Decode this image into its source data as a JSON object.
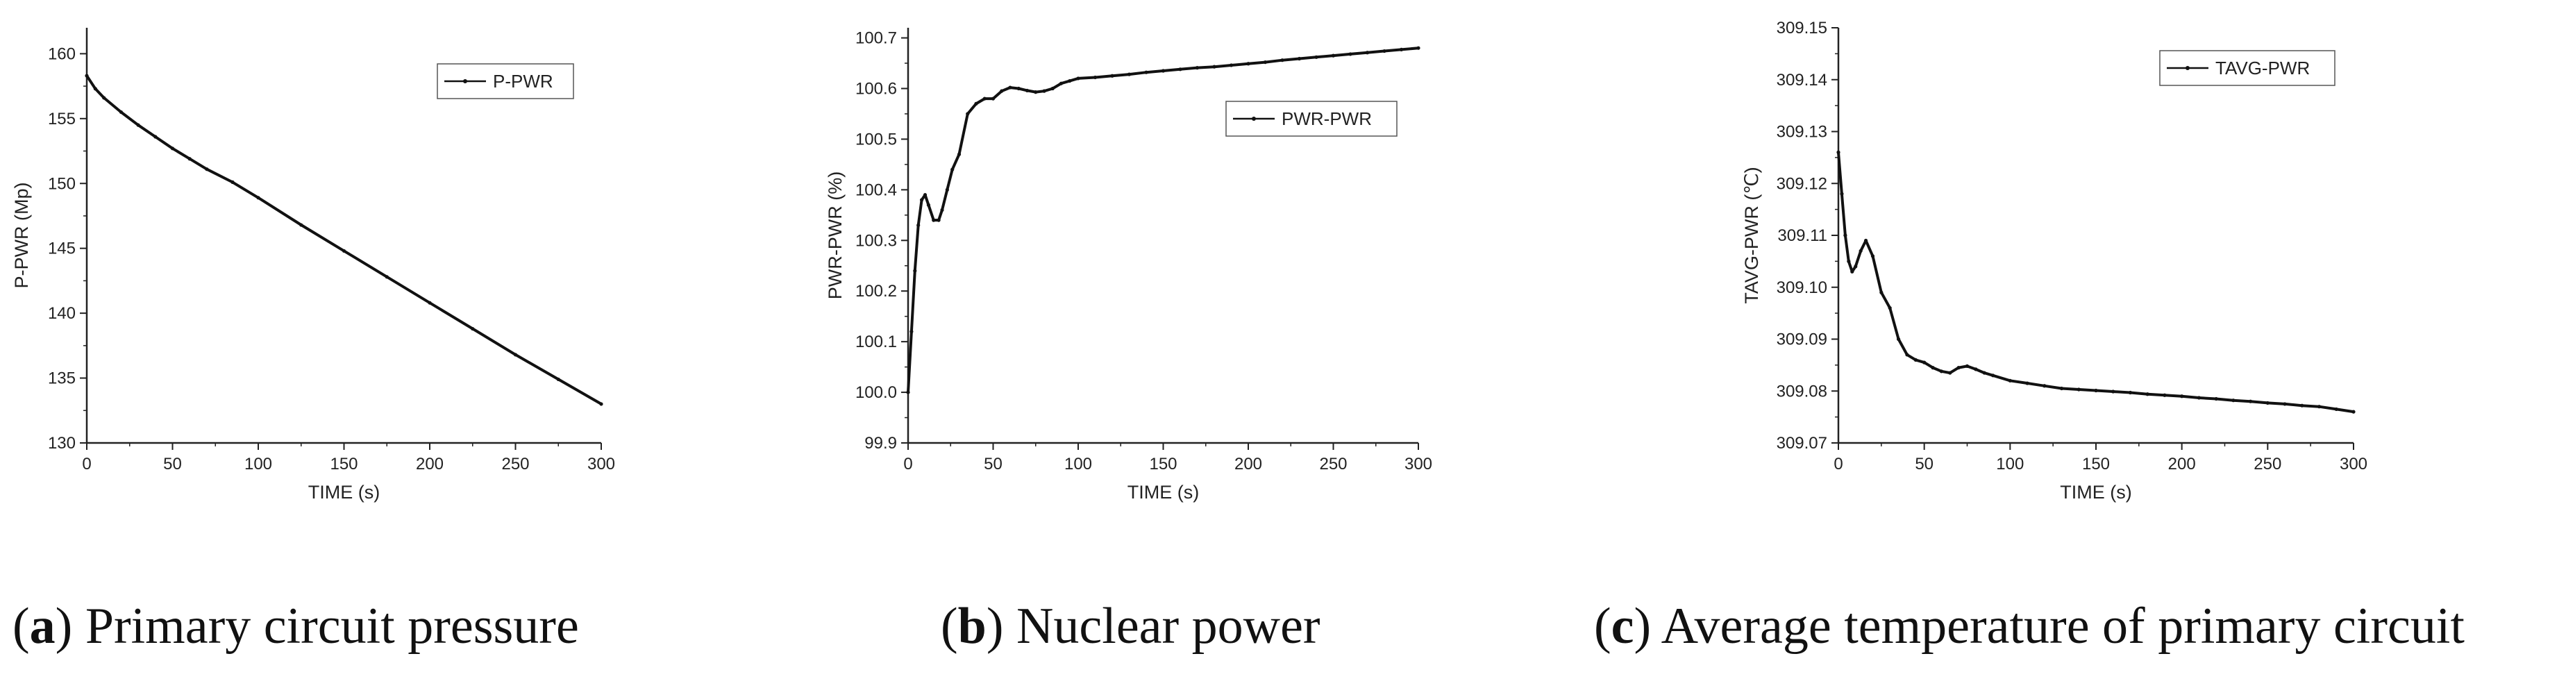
{
  "chart_data": [
    {
      "type": "line",
      "panel_letter": "a",
      "caption": "Primary circuit pressure",
      "xlabel": "TIME (s)",
      "ylabel": "P-PWR (Mp)",
      "xlim": [
        0,
        300
      ],
      "ylim": [
        130,
        162
      ],
      "xticks": [
        0,
        50,
        100,
        150,
        200,
        250,
        300
      ],
      "yticks": [
        130,
        135,
        140,
        145,
        150,
        155,
        160
      ],
      "ytick_labels": [
        "130",
        "135",
        "140",
        "145",
        "150",
        "155",
        "160"
      ],
      "legend_position": "top-right",
      "grid": false,
      "series": [
        {
          "name": "P-PWR",
          "x": [
            0,
            5,
            10,
            20,
            30,
            40,
            50,
            60,
            70,
            85,
            100,
            125,
            150,
            175,
            200,
            225,
            250,
            275,
            300
          ],
          "y": [
            158.3,
            157.3,
            156.6,
            155.5,
            154.5,
            153.6,
            152.7,
            151.9,
            151.1,
            150.1,
            148.9,
            146.8,
            144.8,
            142.8,
            140.8,
            138.8,
            136.8,
            134.9,
            133.0
          ]
        }
      ]
    },
    {
      "type": "line",
      "panel_letter": "b",
      "caption": "Nuclear power",
      "xlabel": "TIME (s)",
      "ylabel": "PWR-PWR (%)",
      "xlim": [
        0,
        300
      ],
      "ylim": [
        99.9,
        100.72
      ],
      "xticks": [
        0,
        50,
        100,
        150,
        200,
        250,
        300
      ],
      "yticks": [
        99.9,
        100.0,
        100.1,
        100.2,
        100.3,
        100.4,
        100.5,
        100.6,
        100.7
      ],
      "ytick_labels": [
        "99.9",
        "100.0",
        "100.1",
        "100.2",
        "100.3",
        "100.4",
        "100.5",
        "100.6",
        "100.7"
      ],
      "legend_position": "upper-right",
      "grid": false,
      "series": [
        {
          "name": "PWR-PWR",
          "x": [
            0,
            2,
            4,
            6,
            8,
            10,
            12,
            15,
            18,
            20,
            23,
            26,
            30,
            35,
            40,
            45,
            50,
            55,
            60,
            65,
            70,
            75,
            80,
            85,
            90,
            95,
            100,
            110,
            120,
            130,
            140,
            150,
            160,
            170,
            180,
            190,
            200,
            210,
            220,
            230,
            240,
            250,
            260,
            270,
            280,
            290,
            300
          ],
          "y": [
            100.0,
            100.12,
            100.24,
            100.33,
            100.38,
            100.39,
            100.37,
            100.34,
            100.34,
            100.36,
            100.4,
            100.44,
            100.47,
            100.55,
            100.57,
            100.58,
            100.58,
            100.595,
            100.602,
            100.6,
            100.596,
            100.593,
            100.595,
            100.6,
            100.61,
            100.615,
            100.62,
            100.622,
            100.625,
            100.628,
            100.632,
            100.635,
            100.638,
            100.641,
            100.643,
            100.646,
            100.649,
            100.652,
            100.656,
            100.659,
            100.662,
            100.665,
            100.668,
            100.671,
            100.674,
            100.677,
            100.68
          ]
        }
      ]
    },
    {
      "type": "line",
      "panel_letter": "c",
      "caption": "Average temperature of primary circuit",
      "xlabel": "TIME (s)",
      "ylabel": "TAVG-PWR (℃)",
      "xlim": [
        0,
        300
      ],
      "ylim": [
        309.07,
        309.15
      ],
      "xticks": [
        0,
        50,
        100,
        150,
        200,
        250,
        300
      ],
      "yticks": [
        309.07,
        309.08,
        309.09,
        309.1,
        309.11,
        309.12,
        309.13,
        309.14,
        309.15
      ],
      "ytick_labels": [
        "309.07",
        "309.08",
        "309.09",
        "309.10",
        "309.11",
        "309.12",
        "309.13",
        "309.14",
        "309.15"
      ],
      "legend_position": "top-center",
      "grid": false,
      "series": [
        {
          "name": "TAVG-PWR",
          "x": [
            0,
            2,
            4,
            6,
            8,
            10,
            13,
            16,
            20,
            25,
            30,
            35,
            40,
            45,
            50,
            55,
            60,
            65,
            70,
            75,
            80,
            85,
            90,
            100,
            110,
            120,
            130,
            140,
            150,
            160,
            170,
            180,
            190,
            200,
            210,
            220,
            230,
            240,
            250,
            260,
            270,
            280,
            290,
            300
          ],
          "y": [
            309.126,
            309.118,
            309.11,
            309.105,
            309.103,
            309.104,
            309.107,
            309.109,
            309.106,
            309.099,
            309.096,
            309.09,
            309.087,
            309.086,
            309.0855,
            309.0845,
            309.0838,
            309.0835,
            309.0845,
            309.0848,
            309.0842,
            309.0835,
            309.083,
            309.082,
            309.0815,
            309.081,
            309.0805,
            309.0803,
            309.0801,
            309.0799,
            309.0797,
            309.0794,
            309.0792,
            309.079,
            309.0787,
            309.0785,
            309.0782,
            309.078,
            309.0777,
            309.0775,
            309.0772,
            309.077,
            309.0765,
            309.076
          ]
        }
      ]
    }
  ]
}
